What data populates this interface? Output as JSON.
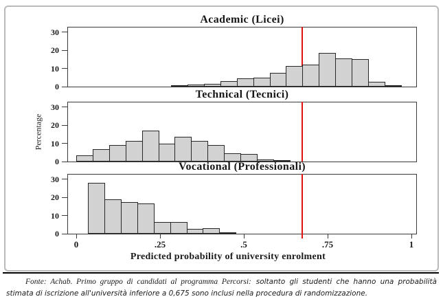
{
  "figure": {
    "caption": {
      "source_label": "Fonte: Achab. Primo gruppo di candidati al programma Percorsi:",
      "text": "soltanto gli studenti che hanno una probabilità stimata di iscrizione all'università inferiore a 0,675 sono inclusi nella procedura di randomizzazione."
    }
  },
  "chart_data": {
    "type": "bar",
    "subtype": "histogram",
    "layout": "three vertically stacked panels sharing one x axis, gridlines off",
    "xlabel": "Predicted probability of university enrolment",
    "ylabel": "Percentage",
    "x_ticks": [
      {
        "value": 0,
        "label": "0"
      },
      {
        "value": 0.25,
        "label": ".25"
      },
      {
        "value": 0.5,
        "label": ".5"
      },
      {
        "value": 0.75,
        "label": ".75"
      },
      {
        "value": 1,
        "label": "1"
      }
    ],
    "y_ticks": [
      0,
      10,
      20,
      30
    ],
    "ylim": [
      0,
      33
    ],
    "xlim": [
      0,
      1.02
    ],
    "reference_line": {
      "x": 0.675,
      "color": "#e01212",
      "meaning": "cutoff: students with predicted probability below 0.675 included in randomization"
    },
    "colors": {
      "bar_fill": "#d2d2d2",
      "bar_stroke": "#262626",
      "frame": "#3a3a3a"
    },
    "panels": [
      {
        "title": "Academic (Licei)",
        "bin_start": 0.283,
        "bin_width": 0.049,
        "values_pct": [
          0.5,
          1.0,
          1.7,
          3.0,
          4.5,
          4.8,
          7.5,
          11.5,
          12.0,
          18.5,
          15.5,
          15.0,
          2.8,
          0.5
        ]
      },
      {
        "title": "Technical (Tecnici)",
        "bin_start": 0.0,
        "bin_width": 0.049,
        "values_pct": [
          3.5,
          7.0,
          9.0,
          11.5,
          17.0,
          10.0,
          13.5,
          11.5,
          9.0,
          4.5,
          4.0,
          1.3,
          0.5
        ]
      },
      {
        "title": "Vocational (Professionali)",
        "bin_start": 0.035,
        "bin_width": 0.049,
        "values_pct": [
          28.0,
          19.0,
          17.5,
          16.5,
          6.5,
          6.5,
          2.5,
          3.2,
          0.9
        ]
      }
    ]
  }
}
